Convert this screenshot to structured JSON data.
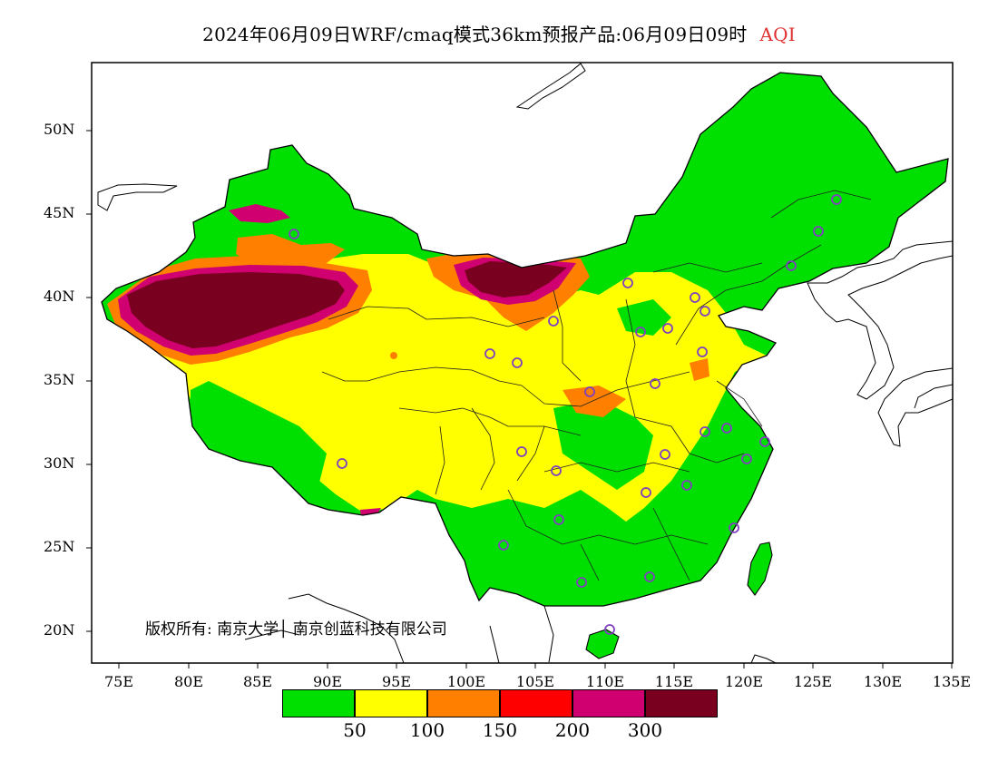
{
  "title": {
    "main": "2024年06月09日WRF/cmaq模式36km预报产品:06月09日09时",
    "variable": "AQI",
    "variable_color": "#e03030"
  },
  "y_axis": {
    "labels": [
      "50N",
      "45N",
      "40N",
      "35N",
      "30N",
      "25N",
      "20N"
    ]
  },
  "x_axis": {
    "labels": [
      "75E",
      "80E",
      "85E",
      "90E",
      "95E",
      "100E",
      "105E",
      "110E",
      "115E",
      "120E",
      "125E",
      "130E",
      "135E"
    ]
  },
  "copyright": "版权所有: 南京大学│ 南京创蓝科技有限公司",
  "legend": {
    "colors": [
      "#00e000",
      "#ffff00",
      "#ff8000",
      "#ff0000",
      "#d00070",
      "#7a0020"
    ],
    "thresholds": [
      "50",
      "100",
      "150",
      "200",
      "300"
    ]
  },
  "stations_color": "#8040c0",
  "land_color": "#00e000"
}
